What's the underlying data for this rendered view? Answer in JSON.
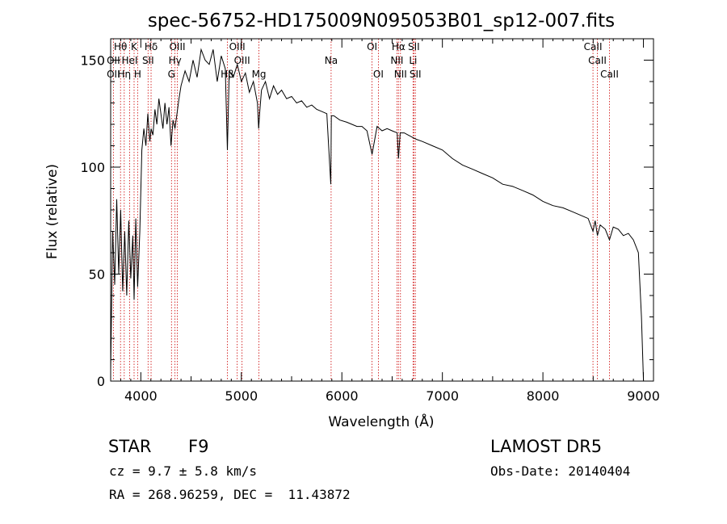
{
  "chart_data": {
    "type": "line",
    "title": "spec-56752-HD175009N095053B01_sp12-007.fits",
    "xlabel": "Wavelength (Å)",
    "ylabel": "Flux (relative)",
    "xlim": [
      3700,
      9100
    ],
    "ylim": [
      0,
      160
    ],
    "xticks": [
      4000,
      5000,
      6000,
      7000,
      8000,
      9000
    ],
    "yticks": [
      0,
      50,
      100,
      150
    ],
    "grid": false,
    "series": [
      {
        "color": "#000000",
        "x": [
          3700,
          3720,
          3740,
          3760,
          3780,
          3800,
          3820,
          3840,
          3860,
          3880,
          3900,
          3920,
          3933,
          3950,
          3968,
          3990,
          4010,
          4030,
          4050,
          4070,
          4090,
          4102,
          4120,
          4140,
          4160,
          4180,
          4200,
          4220,
          4240,
          4260,
          4280,
          4300,
          4320,
          4340,
          4360,
          4380,
          4400,
          4440,
          4480,
          4520,
          4560,
          4600,
          4640,
          4680,
          4720,
          4760,
          4800,
          4840,
          4861,
          4880,
          4920,
          4960,
          5000,
          5040,
          5080,
          5120,
          5160,
          5172,
          5183,
          5200,
          5240,
          5280,
          5320,
          5360,
          5400,
          5450,
          5500,
          5550,
          5600,
          5650,
          5700,
          5750,
          5800,
          5850,
          5890,
          5895,
          5920,
          5980,
          6050,
          6100,
          6150,
          6200,
          6250,
          6300,
          6350,
          6400,
          6450,
          6500,
          6550,
          6563,
          6580,
          6620,
          6660,
          6700,
          6740,
          6800,
          6900,
          7000,
          7100,
          7200,
          7300,
          7400,
          7500,
          7600,
          7700,
          7800,
          7900,
          8000,
          8100,
          8200,
          8300,
          8400,
          8450,
          8498,
          8520,
          8542,
          8570,
          8620,
          8662,
          8700,
          8750,
          8800,
          8850,
          8900,
          8950,
          8980,
          9000
        ],
        "y": [
          5,
          70,
          45,
          85,
          50,
          80,
          42,
          70,
          40,
          75,
          48,
          68,
          38,
          76,
          44,
          70,
          108,
          118,
          110,
          125,
          112,
          118,
          115,
          127,
          120,
          132,
          125,
          118,
          130,
          120,
          128,
          110,
          122,
          118,
          125,
          132,
          138,
          145,
          140,
          150,
          142,
          155,
          150,
          148,
          155,
          140,
          152,
          146,
          108,
          145,
          142,
          148,
          140,
          144,
          135,
          140,
          130,
          118,
          126,
          136,
          140,
          132,
          138,
          134,
          136,
          132,
          133,
          130,
          131,
          128,
          129,
          127,
          126,
          125,
          92,
          124,
          124,
          122,
          121,
          120,
          119,
          119,
          117,
          106,
          119,
          117,
          118,
          117,
          116,
          104,
          116,
          116,
          115,
          114,
          113,
          112,
          110,
          108,
          104,
          101,
          99,
          97,
          95,
          92,
          91,
          89,
          87,
          84,
          82,
          81,
          79,
          77,
          76,
          70,
          75,
          68,
          73,
          71,
          66,
          72,
          71,
          68,
          69,
          66,
          60,
          30,
          0
        ]
      }
    ],
    "annotations": [
      {
        "label": "Hθ",
        "x": 3798,
        "row": 1
      },
      {
        "label": "K",
        "x": 3933,
        "row": 1
      },
      {
        "label": "Hδ",
        "x": 4102,
        "row": 1
      },
      {
        "label": "OIII",
        "x": 4363,
        "row": 1
      },
      {
        "label": "OIII",
        "x": 4959,
        "row": 1
      },
      {
        "label": "OI",
        "x": 6300,
        "row": 1
      },
      {
        "label": "Hα",
        "x": 6563,
        "row": 1
      },
      {
        "label": "SII",
        "x": 6716,
        "row": 1
      },
      {
        "label": "CaII",
        "x": 8498,
        "row": 1
      },
      {
        "label": "OII",
        "x": 3727,
        "row": 2
      },
      {
        "label": "HeI",
        "x": 3889,
        "row": 2
      },
      {
        "label": "SII",
        "x": 4072,
        "row": 2
      },
      {
        "label": "Hγ",
        "x": 4340,
        "row": 2
      },
      {
        "label": "OIII",
        "x": 5007,
        "row": 2
      },
      {
        "label": "Na",
        "x": 5893,
        "row": 2
      },
      {
        "label": "NII",
        "x": 6548,
        "row": 2
      },
      {
        "label": "Li",
        "x": 6708,
        "row": 2
      },
      {
        "label": "CaII",
        "x": 8542,
        "row": 2
      },
      {
        "label": "OII",
        "x": 3727,
        "row": 3
      },
      {
        "label": "Hη",
        "x": 3835,
        "row": 3
      },
      {
        "label": "H",
        "x": 3968,
        "row": 3
      },
      {
        "label": "G",
        "x": 4305,
        "row": 3
      },
      {
        "label": "Hβ",
        "x": 4861,
        "row": 3
      },
      {
        "label": "Mg",
        "x": 5175,
        "row": 3
      },
      {
        "label": "OI",
        "x": 6363,
        "row": 3
      },
      {
        "label": "NII",
        "x": 6583,
        "row": 3
      },
      {
        "label": "SII",
        "x": 6731,
        "row": 3
      },
      {
        "label": "CaII",
        "x": 8662,
        "row": 3
      }
    ],
    "line_markers": [
      3727,
      3798,
      3835,
      3889,
      3933,
      3968,
      4072,
      4102,
      4305,
      4340,
      4363,
      4861,
      4959,
      5007,
      5175,
      5893,
      6300,
      6363,
      6548,
      6563,
      6583,
      6708,
      6716,
      6731,
      8498,
      8542,
      8662
    ],
    "marker_color": "#cc0000"
  },
  "info": {
    "class": "STAR",
    "subclass": "F9",
    "survey": "LAMOST DR5",
    "redshift": "cz = 9.7 ± 5.8 km/s",
    "obsdate": "Obs-Date: 20140404",
    "coords": "RA = 268.96259, DEC =  11.43872"
  }
}
